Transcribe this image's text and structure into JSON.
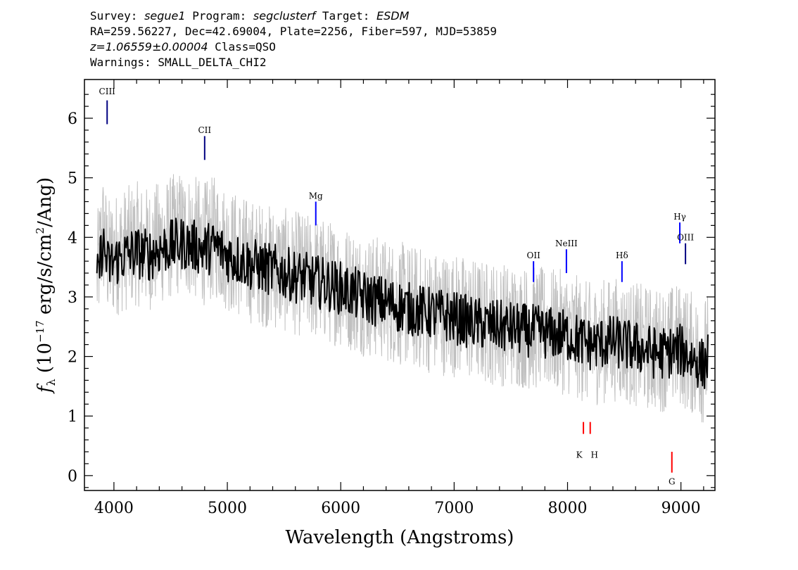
{
  "header": {
    "line1": [
      {
        "t": "Survey: ",
        "i": false
      },
      {
        "t": "segue1",
        "i": true
      },
      {
        "t": " Program: ",
        "i": false
      },
      {
        "t": "segclusterf",
        "i": true
      },
      {
        "t": " Target: ",
        "i": false
      },
      {
        "t": "ESDM",
        "i": true
      }
    ],
    "line2": "RA=259.56227, Dec=42.69004, Plate=2256, Fiber=597, MJD=53859",
    "line3_redshift": "z=1.06559±0.00004",
    "line3_class": " Class=QSO",
    "line4": "Warnings: SMALL_DELTA_CHI2"
  },
  "chart_data": {
    "type": "line",
    "xlabel": "Wavelength (Angstroms)",
    "ylabel_parts": {
      "f": "f",
      "sub": "λ",
      "pre": " (10",
      "exp": "−17",
      "mid": " erg/s/cm",
      "exp2": "2",
      "post": "/Ang)"
    },
    "xlim": [
      3740,
      9300
    ],
    "ylim": [
      -0.25,
      6.65
    ],
    "xticks": [
      4000,
      5000,
      6000,
      7000,
      8000,
      9000
    ],
    "yticks": [
      0,
      1,
      2,
      3,
      4,
      5,
      6
    ],
    "series": [
      {
        "role": "flux_error_envelope",
        "color": "#c0c0c0",
        "x": [
          3850,
          3900,
          3950,
          4000,
          4100,
          4200,
          4300,
          4400,
          4500,
          4600,
          4700,
          4800,
          4900,
          5000,
          5200,
          5400,
          5600,
          5800,
          6000,
          6200,
          6400,
          6600,
          6800,
          7000,
          7200,
          7400,
          7600,
          7800,
          8000,
          8200,
          8400,
          8600,
          8800,
          9000,
          9200,
          9240
        ],
        "values": [
          3.3,
          4.1,
          3.6,
          3.7,
          3.8,
          3.9,
          3.8,
          3.9,
          4.0,
          4.1,
          4.0,
          3.9,
          4.0,
          3.8,
          3.6,
          3.5,
          3.4,
          3.3,
          3.2,
          3.05,
          2.95,
          2.85,
          2.75,
          2.7,
          2.6,
          2.55,
          2.5,
          2.45,
          2.4,
          2.2,
          2.3,
          2.2,
          2.1,
          2.2,
          1.9,
          2.1
        ]
      },
      {
        "role": "flux",
        "color": "#000000",
        "x": [
          3850,
          3900,
          3950,
          4000,
          4100,
          4200,
          4300,
          4400,
          4500,
          4600,
          4700,
          4800,
          4900,
          5000,
          5200,
          5400,
          5600,
          5800,
          6000,
          6200,
          6400,
          6600,
          6800,
          7000,
          7200,
          7400,
          7600,
          7800,
          8000,
          8200,
          8400,
          8600,
          8800,
          9000,
          9200,
          9240
        ],
        "values": [
          3.2,
          3.9,
          3.5,
          3.6,
          3.7,
          3.75,
          3.7,
          3.8,
          3.85,
          3.9,
          3.85,
          3.8,
          3.85,
          3.7,
          3.55,
          3.45,
          3.35,
          3.25,
          3.15,
          3.0,
          2.9,
          2.8,
          2.72,
          2.65,
          2.55,
          2.5,
          2.45,
          2.4,
          2.35,
          2.2,
          2.25,
          2.15,
          2.05,
          2.1,
          1.85,
          2.0
        ]
      },
      {
        "role": "model",
        "color": "#0000ff",
        "x": [],
        "values": []
      }
    ],
    "emission_lines": [
      {
        "label": "CIII",
        "x": 3940,
        "y0": 5.9,
        "y1": 6.3,
        "label_y": 6.4,
        "color": "#000080"
      },
      {
        "label": "CII",
        "x": 4800,
        "y0": 5.3,
        "y1": 5.7,
        "label_y": 5.75,
        "color": "#000080"
      },
      {
        "label": "Mg",
        "x": 5780,
        "y0": 4.2,
        "y1": 4.6,
        "label_y": 4.65,
        "color": "#0000ff"
      },
      {
        "label": "OII",
        "x": 7700,
        "y0": 3.25,
        "y1": 3.6,
        "label_y": 3.65,
        "color": "#0000ff"
      },
      {
        "label": "NeIII",
        "x": 7990,
        "y0": 3.4,
        "y1": 3.8,
        "label_y": 3.85,
        "color": "#0000ff"
      },
      {
        "label": "Hδ",
        "x": 8480,
        "y0": 3.25,
        "y1": 3.6,
        "label_y": 3.65,
        "color": "#0000ff"
      },
      {
        "label": "Hγ",
        "x": 8990,
        "y0": 3.9,
        "y1": 4.25,
        "label_y": 4.3,
        "color": "#0000ff"
      },
      {
        "label": "OIII",
        "x": 9040,
        "y0": 3.55,
        "y1": 3.9,
        "label_y": 3.95,
        "color": "#000080"
      }
    ],
    "absorption_lines": [
      {
        "label": "K",
        "x": 8140,
        "y0": 0.7,
        "y1": 0.9,
        "label_y": 0.3,
        "color": "#ff0000"
      },
      {
        "label": "H",
        "x": 8200,
        "y0": 0.7,
        "y1": 0.9,
        "label_y": 0.3,
        "color": "#ff0000"
      },
      {
        "label": "G",
        "x": 8920,
        "y0": 0.05,
        "y1": 0.4,
        "label_y": -0.15,
        "color": "#ff0000"
      }
    ]
  }
}
